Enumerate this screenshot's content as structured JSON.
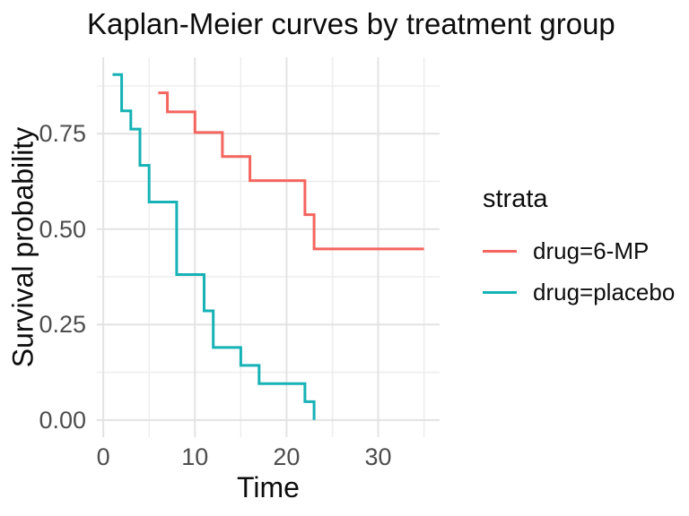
{
  "title": "Kaplan-Meier curves by treatment group",
  "axes": {
    "x": {
      "label": "Time",
      "tick_labels": [
        "0",
        "10",
        "20",
        "30"
      ],
      "tick_values": [
        0,
        10,
        20,
        30
      ],
      "minor_values": [
        5,
        15,
        25,
        35
      ],
      "range": [
        -0.7,
        36.7
      ]
    },
    "y": {
      "label": "Survival probability",
      "tick_labels": [
        "0.00",
        "0.25",
        "0.50",
        "0.75"
      ],
      "tick_values": [
        0,
        0.25,
        0.5,
        0.75
      ],
      "minor_values": [
        0.125,
        0.375,
        0.625,
        0.875
      ],
      "range": [
        -0.045,
        0.95
      ]
    }
  },
  "legend": {
    "title": "strata",
    "position": "right"
  },
  "colors": {
    "series_red": "#F4655E",
    "series_teal": "#16B2B6",
    "grid_major": "#E3E3E3",
    "grid_minor": "#EDEDED",
    "tick_label_text": "#4d4d4d",
    "title_text": "#0d0d0d"
  },
  "chart_data": {
    "type": "line",
    "subtype": "step-kaplan-meier",
    "title": "Kaplan-Meier curves by treatment group",
    "xlabel": "Time",
    "ylabel": "Survival probability",
    "xlim": [
      0,
      35
    ],
    "ylim": [
      0,
      1
    ],
    "grid": true,
    "legend_position": "right",
    "series": [
      {
        "name": "drug=6-MP",
        "color": "#F4655E",
        "points": [
          [
            6,
            0.857
          ],
          [
            7,
            0.807
          ],
          [
            10,
            0.753
          ],
          [
            13,
            0.69
          ],
          [
            16,
            0.627
          ],
          [
            22,
            0.538
          ],
          [
            23,
            0.448
          ],
          [
            35,
            0.448
          ]
        ]
      },
      {
        "name": "drug=placebo",
        "color": "#16B2B6",
        "points": [
          [
            1,
            0.905
          ],
          [
            2,
            0.81
          ],
          [
            3,
            0.762
          ],
          [
            4,
            0.667
          ],
          [
            5,
            0.571
          ],
          [
            8,
            0.381
          ],
          [
            11,
            0.286
          ],
          [
            12,
            0.19
          ],
          [
            15,
            0.143
          ],
          [
            17,
            0.095
          ],
          [
            22,
            0.048
          ],
          [
            23,
            0.0
          ]
        ]
      }
    ]
  }
}
